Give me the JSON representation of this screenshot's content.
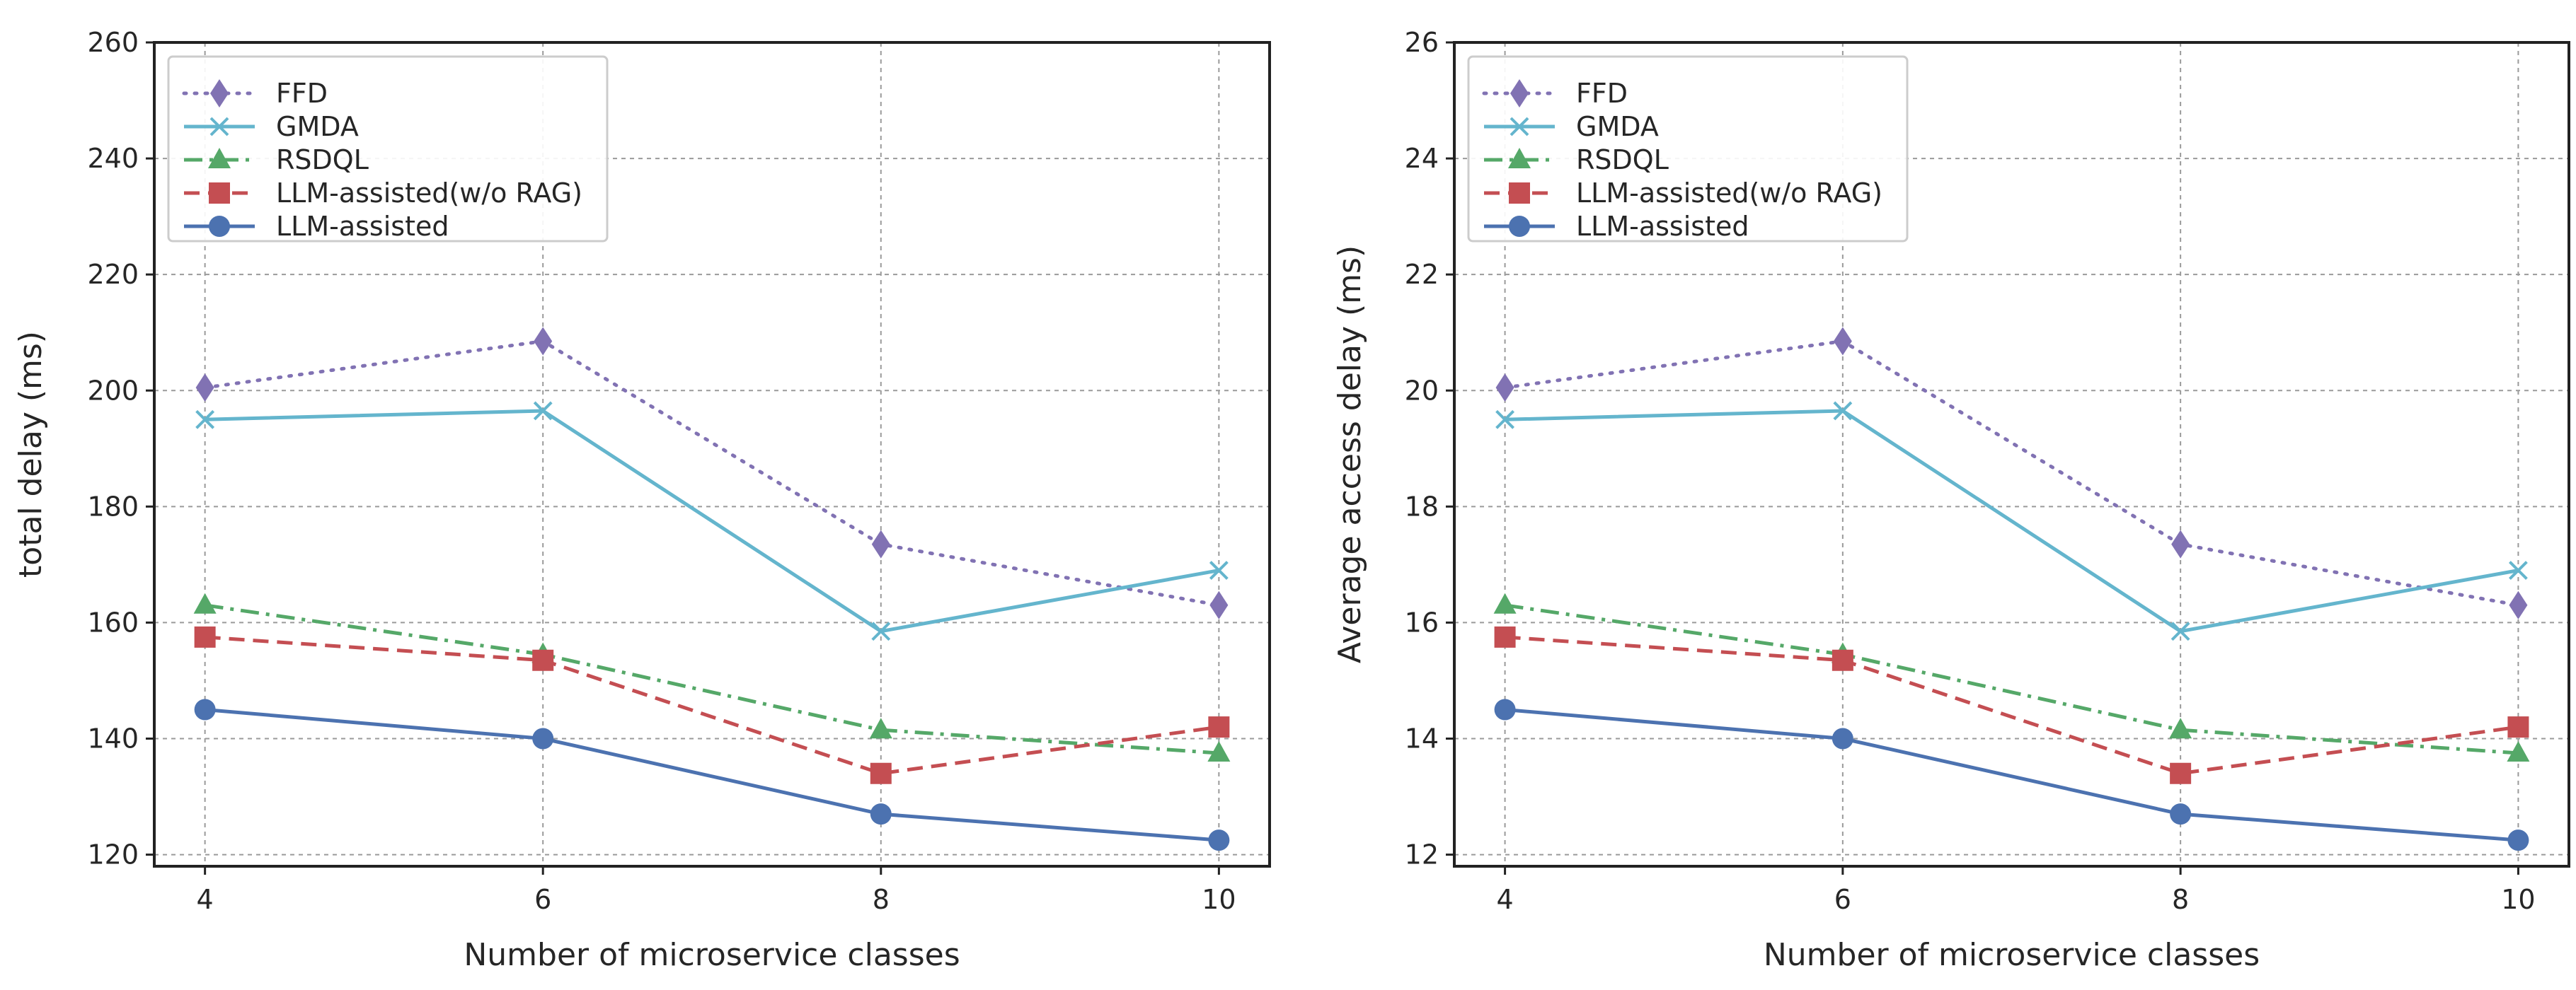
{
  "chart_data": [
    {
      "type": "line",
      "title": "",
      "xlabel": "Number of microservice classes",
      "ylabel": "total delay (ms)",
      "x": [
        4,
        6,
        8,
        10
      ],
      "xlim": [
        3.7,
        10.3
      ],
      "ylim": [
        118,
        260
      ],
      "xticks": [
        4,
        6,
        8,
        10
      ],
      "yticks": [
        120,
        140,
        160,
        180,
        200,
        220,
        240,
        260
      ],
      "grid": true,
      "legend_position": "top-left",
      "series": [
        {
          "name": "FFD",
          "values": [
            200.5,
            208.5,
            173.5,
            163.0
          ],
          "color": "#8172b3",
          "dash": "dotted",
          "marker": "diamond"
        },
        {
          "name": "GMDA",
          "values": [
            195.0,
            196.5,
            158.5,
            169.0
          ],
          "color": "#64b5cd",
          "dash": "solid",
          "marker": "x"
        },
        {
          "name": "RSDQL",
          "values": [
            163.0,
            154.5,
            141.5,
            137.5
          ],
          "color": "#55a868",
          "dash": "dashdot",
          "marker": "triangle"
        },
        {
          "name": "LLM-assisted(w/o RAG)",
          "values": [
            157.5,
            153.5,
            134.0,
            142.0
          ],
          "color": "#c44e52",
          "dash": "dashed",
          "marker": "square"
        },
        {
          "name": "LLM-assisted",
          "values": [
            145.0,
            140.0,
            127.0,
            122.5
          ],
          "color": "#4c72b0",
          "dash": "solid",
          "marker": "circle"
        }
      ]
    },
    {
      "type": "line",
      "title": "",
      "xlabel": "Number of microservice classes",
      "ylabel": "Average access delay (ms)",
      "x": [
        4,
        6,
        8,
        10
      ],
      "xlim": [
        3.7,
        10.3
      ],
      "ylim": [
        11.8,
        26
      ],
      "xticks": [
        4,
        6,
        8,
        10
      ],
      "yticks": [
        12,
        14,
        16,
        18,
        20,
        22,
        24,
        26
      ],
      "grid": true,
      "legend_position": "top-left",
      "series": [
        {
          "name": "FFD",
          "values": [
            20.05,
            20.85,
            17.35,
            16.3
          ],
          "color": "#8172b3",
          "dash": "dotted",
          "marker": "diamond"
        },
        {
          "name": "GMDA",
          "values": [
            19.5,
            19.65,
            15.85,
            16.9
          ],
          "color": "#64b5cd",
          "dash": "solid",
          "marker": "x"
        },
        {
          "name": "RSDQL",
          "values": [
            16.3,
            15.45,
            14.15,
            13.75
          ],
          "color": "#55a868",
          "dash": "dashdot",
          "marker": "triangle"
        },
        {
          "name": "LLM-assisted(w/o RAG)",
          "values": [
            15.75,
            15.35,
            13.4,
            14.2
          ],
          "color": "#c44e52",
          "dash": "dashed",
          "marker": "square"
        },
        {
          "name": "LLM-assisted",
          "values": [
            14.5,
            14.0,
            12.7,
            12.25
          ],
          "color": "#4c72b0",
          "dash": "solid",
          "marker": "circle"
        }
      ]
    }
  ]
}
